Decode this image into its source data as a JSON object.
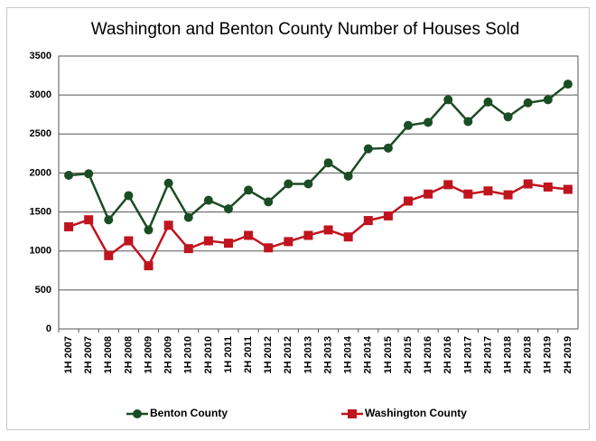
{
  "chart_data": {
    "type": "line",
    "title": "Washington and Benton County Number of Houses Sold",
    "categories": [
      "1H 2007",
      "2H 2007",
      "1H 2008",
      "2H 2008",
      "1H 2009",
      "2H 2009",
      "1H 2010",
      "2H 2010",
      "1H 2011",
      "2H 2011",
      "1H 2012",
      "2H 2012",
      "1H 2013",
      "2H 2013",
      "1H 2014",
      "2H 2014",
      "1H 2015",
      "2H 2015",
      "1H 2016",
      "2H 2016",
      "1H 2017",
      "2H 2017",
      "1H 2018",
      "2H 2018",
      "1H 2019",
      "2H 2019"
    ],
    "series": [
      {
        "name": "Benton County",
        "color": "#1b4d24",
        "marker": "circle",
        "values": [
          1970,
          1990,
          1400,
          1710,
          1270,
          1870,
          1430,
          1650,
          1540,
          1780,
          1630,
          1860,
          1860,
          2130,
          1960,
          2310,
          2320,
          2610,
          2650,
          2940,
          2660,
          2910,
          2720,
          2900,
          2940,
          3140
        ]
      },
      {
        "name": "Washington County",
        "color": "#c0141e",
        "marker": "square",
        "values": [
          1310,
          1400,
          940,
          1130,
          810,
          1330,
          1030,
          1130,
          1100,
          1200,
          1040,
          1120,
          1200,
          1270,
          1180,
          1390,
          1450,
          1640,
          1730,
          1850,
          1730,
          1770,
          1720,
          1860,
          1820,
          1790
        ]
      }
    ],
    "ylim": [
      0,
      3500
    ],
    "yticks": [
      0,
      500,
      1000,
      1500,
      2000,
      2500,
      3000,
      3500
    ],
    "grid": true,
    "legend": "bottom"
  }
}
